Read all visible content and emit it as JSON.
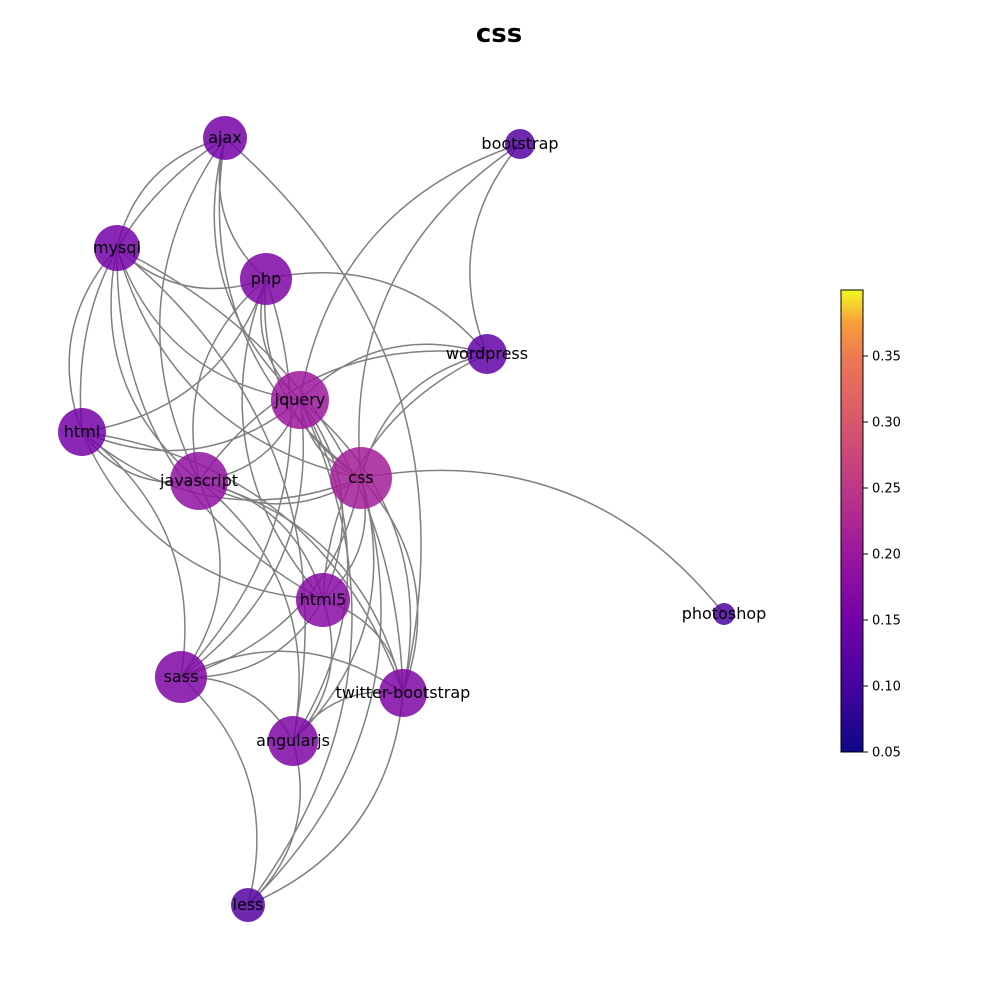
{
  "chart_data": {
    "type": "network",
    "title": "css",
    "edge_color": "#808080",
    "colormap": "plasma",
    "colorbar": {
      "min": 0.05,
      "max": 0.4,
      "ticks": [
        "0.05",
        "0.10",
        "0.15",
        "0.20",
        "0.25",
        "0.30",
        "0.35"
      ],
      "placement": "right"
    },
    "nodes": [
      {
        "id": "css",
        "label": "css",
        "value": 0.19
      },
      {
        "id": "jquery",
        "label": "jquery",
        "value": 0.18
      },
      {
        "id": "javascript",
        "label": "javascript",
        "value": 0.17
      },
      {
        "id": "html5",
        "label": "html5",
        "value": 0.16
      },
      {
        "id": "php",
        "label": "php",
        "value": 0.15
      },
      {
        "id": "html",
        "label": "html",
        "value": 0.14
      },
      {
        "id": "mysql",
        "label": "mysql",
        "value": 0.14
      },
      {
        "id": "ajax",
        "label": "ajax",
        "value": 0.14
      },
      {
        "id": "sass",
        "label": "sass",
        "value": 0.15
      },
      {
        "id": "angularjs",
        "label": "angularjs",
        "value": 0.15
      },
      {
        "id": "twitter-bootstrap",
        "label": "twitter-bootstrap",
        "value": 0.15
      },
      {
        "id": "wordpress",
        "label": "wordpress",
        "value": 0.12
      },
      {
        "id": "bootstrap",
        "label": "bootstrap",
        "value": 0.11
      },
      {
        "id": "less",
        "label": "less",
        "value": 0.11
      },
      {
        "id": "photoshop",
        "label": "photoshop",
        "value": 0.1
      }
    ],
    "edges": [
      [
        "css",
        "photoshop"
      ],
      [
        "css",
        "jquery"
      ],
      [
        "css",
        "javascript"
      ],
      [
        "css",
        "html5"
      ],
      [
        "css",
        "php"
      ],
      [
        "css",
        "html"
      ],
      [
        "css",
        "mysql"
      ],
      [
        "css",
        "ajax"
      ],
      [
        "css",
        "sass"
      ],
      [
        "css",
        "angularjs"
      ],
      [
        "css",
        "twitter-bootstrap"
      ],
      [
        "css",
        "wordpress"
      ],
      [
        "css",
        "bootstrap"
      ],
      [
        "css",
        "less"
      ],
      [
        "jquery",
        "javascript"
      ],
      [
        "jquery",
        "html5"
      ],
      [
        "jquery",
        "php"
      ],
      [
        "jquery",
        "html"
      ],
      [
        "jquery",
        "mysql"
      ],
      [
        "jquery",
        "ajax"
      ],
      [
        "jquery",
        "sass"
      ],
      [
        "jquery",
        "angularjs"
      ],
      [
        "jquery",
        "twitter-bootstrap"
      ],
      [
        "jquery",
        "wordpress"
      ],
      [
        "jquery",
        "bootstrap"
      ],
      [
        "jquery",
        "less"
      ],
      [
        "javascript",
        "html5"
      ],
      [
        "javascript",
        "php"
      ],
      [
        "javascript",
        "html"
      ],
      [
        "javascript",
        "mysql"
      ],
      [
        "javascript",
        "ajax"
      ],
      [
        "javascript",
        "sass"
      ],
      [
        "javascript",
        "angularjs"
      ],
      [
        "javascript",
        "twitter-bootstrap"
      ],
      [
        "javascript",
        "wordpress"
      ],
      [
        "html5",
        "php"
      ],
      [
        "html5",
        "html"
      ],
      [
        "html5",
        "sass"
      ],
      [
        "html5",
        "angularjs"
      ],
      [
        "html5",
        "twitter-bootstrap"
      ],
      [
        "html5",
        "wordpress"
      ],
      [
        "html5",
        "mysql"
      ],
      [
        "php",
        "html"
      ],
      [
        "php",
        "mysql"
      ],
      [
        "php",
        "ajax"
      ],
      [
        "php",
        "wordpress"
      ],
      [
        "php",
        "sass"
      ],
      [
        "html",
        "mysql"
      ],
      [
        "html",
        "ajax"
      ],
      [
        "html",
        "sass"
      ],
      [
        "html",
        "twitter-bootstrap"
      ],
      [
        "mysql",
        "ajax"
      ],
      [
        "mysql",
        "angularjs"
      ],
      [
        "mysql",
        "twitter-bootstrap"
      ],
      [
        "ajax",
        "twitter-bootstrap"
      ],
      [
        "sass",
        "angularjs"
      ],
      [
        "sass",
        "twitter-bootstrap"
      ],
      [
        "sass",
        "less"
      ],
      [
        "angularjs",
        "twitter-bootstrap"
      ],
      [
        "angularjs",
        "less"
      ],
      [
        "twitter-bootstrap",
        "less"
      ],
      [
        "wordpress",
        "bootstrap"
      ]
    ]
  }
}
